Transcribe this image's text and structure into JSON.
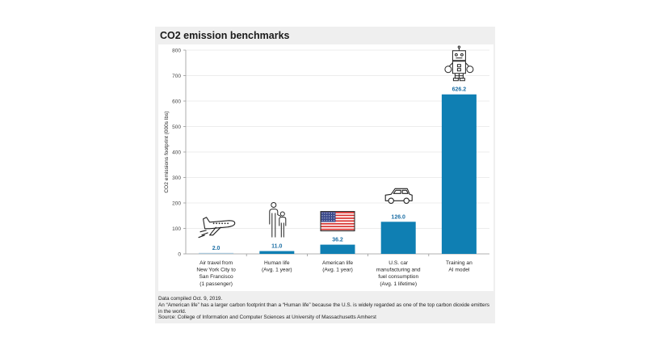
{
  "chart_data": {
    "type": "bar",
    "title": "CO2 emission benchmarks",
    "xlabel": "",
    "ylabel": "CO2 emissions footprint (000s lbs)",
    "ylim": [
      0,
      800
    ],
    "yticks": [
      0,
      100,
      200,
      300,
      400,
      500,
      600,
      700,
      800
    ],
    "grid": true,
    "bar_color": "#0f7fb3",
    "value_label_color": "#1d6fa5",
    "categories": [
      [
        "Air travel from",
        "New York City to",
        "San Francisco",
        "(1 passenger)"
      ],
      [
        "Human life",
        "(Avg. 1 year)"
      ],
      [
        "American life",
        "(Avg. 1 year)"
      ],
      [
        "U.S. car",
        "manufacturing and",
        "fuel consumption",
        "(Avg. 1 lifetime)"
      ],
      [
        "Training an",
        "AI model"
      ]
    ],
    "values": [
      2.0,
      11.0,
      36.2,
      126.0,
      626.2
    ],
    "value_labels": [
      "2.0",
      "11.0",
      "36.2",
      "126.0",
      "626.2"
    ],
    "icons": [
      "airplane-icon",
      "people-icon",
      "us-flag-icon",
      "car-icon",
      "robot-icon"
    ]
  },
  "notes": [
    "Data compiled Oct. 9, 2019.",
    "An “American life” has a larger carbon footprint than a “Human life” because the U.S. is widely regarded as one of the top carbon dioxide emitters in the world.",
    "Source: College of Information and Computer Sciences at University of Massachusetts Amherst"
  ]
}
